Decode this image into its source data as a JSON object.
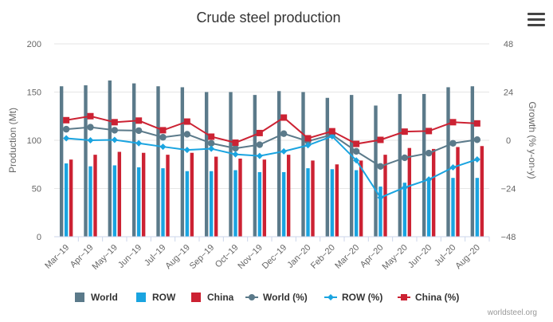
{
  "menu_icon": "hamburger-menu-icon",
  "credit": "worldsteel.org",
  "colors": {
    "world": "#5b7a8a",
    "row": "#1aa4e0",
    "china": "#cc2233",
    "grid": "#e6e6e6",
    "text": "#666666"
  },
  "chart_data": {
    "type": "bar+line",
    "title": "Crude steel production",
    "ylabel_left": "Production (Mt)",
    "ylabel_right": "Growth (% y-on-y)",
    "ylim_left": [
      0,
      200
    ],
    "yticks_left": [
      "0",
      "50",
      "100",
      "150",
      "200"
    ],
    "ylim_right": [
      -48,
      48
    ],
    "yticks_right": [
      "−48",
      "−24",
      "0",
      "24",
      "48"
    ],
    "grid": true,
    "legend_position": "bottom",
    "categories": [
      "Mar−19",
      "Apr−19",
      "May−19",
      "Jun−19",
      "Jul−19",
      "Aug−19",
      "Sep−19",
      "Oct−19",
      "Nov−19",
      "Dec−19",
      "Jan−20",
      "Feb−20",
      "Mar−20",
      "Apr−20",
      "May−20",
      "Jun−20",
      "Jul−20",
      "Aug−20"
    ],
    "bar_series": [
      {
        "name": "World",
        "color": "#5b7a8a",
        "values": [
          156,
          157,
          162,
          159,
          156,
          155,
          150,
          150,
          147,
          151,
          150,
          144,
          147,
          136,
          148,
          148,
          155,
          156
        ]
      },
      {
        "name": "ROW",
        "color": "#1aa4e0",
        "values": [
          76,
          73,
          74,
          72,
          71,
          68,
          68,
          69,
          67,
          67,
          71,
          70,
          69,
          52,
          56,
          58,
          61,
          61
        ]
      },
      {
        "name": "China",
        "color": "#cc2233",
        "values": [
          80,
          85,
          88,
          87,
          85,
          87,
          83,
          81,
          80,
          85,
          79,
          75,
          79,
          85,
          92,
          91,
          93,
          94
        ]
      }
    ],
    "line_series": [
      {
        "name": "World (%)",
        "color": "#5b7a8a",
        "marker": "circle",
        "values": [
          5.5,
          6.5,
          5,
          4.8,
          1.5,
          3,
          -1.5,
          -4,
          -2.2,
          3.3,
          -0.5,
          2.8,
          -5.5,
          -13,
          -8.7,
          -6.4,
          -1.5,
          0.3
        ]
      },
      {
        "name": "ROW (%)",
        "color": "#1aa4e0",
        "marker": "diamond",
        "values": [
          1,
          0,
          0.2,
          -1.5,
          -3.2,
          -4.8,
          -4.2,
          -7,
          -7.8,
          -5.5,
          -2.5,
          2,
          -10,
          -28.5,
          -23.5,
          -19.5,
          -13.5,
          -9.5
        ]
      },
      {
        "name": "China (%)",
        "color": "#cc2233",
        "marker": "square",
        "values": [
          10,
          12,
          9,
          9.8,
          5,
          9.3,
          1.8,
          -1.2,
          3.6,
          11.3,
          1,
          4.5,
          -1.8,
          0.2,
          4.3,
          4.6,
          9,
          8.4
        ]
      }
    ]
  }
}
